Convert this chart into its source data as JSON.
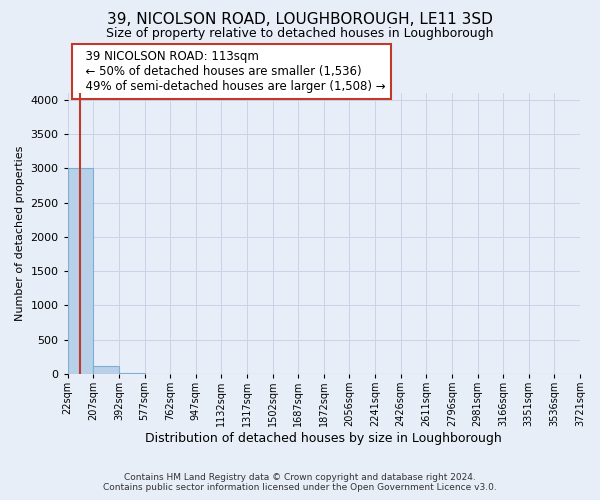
{
  "title": "39, NICOLSON ROAD, LOUGHBOROUGH, LE11 3SD",
  "subtitle": "Size of property relative to detached houses in Loughborough",
  "xlabel": "Distribution of detached houses by size in Loughborough",
  "ylabel": "Number of detached properties",
  "footer_line1": "Contains HM Land Registry data © Crown copyright and database right 2024.",
  "footer_line2": "Contains public sector information licensed under the Open Government Licence v3.0.",
  "annotation_title": "39 NICOLSON ROAD: 113sqm",
  "annotation_line1": "← 50% of detached houses are smaller (1,536)",
  "annotation_line2": "49% of semi-detached houses are larger (1,508) →",
  "property_size": 113,
  "bin_edges": [
    22,
    207,
    392,
    577,
    762,
    947,
    1132,
    1317,
    1502,
    1687,
    1872,
    2056,
    2241,
    2426,
    2611,
    2796,
    2981,
    3166,
    3351,
    3536,
    3721
  ],
  "bar_heights": [
    3000,
    120,
    8,
    3,
    2,
    2,
    1,
    1,
    1,
    1,
    1,
    0,
    0,
    0,
    0,
    0,
    0,
    0,
    0,
    0
  ],
  "bar_color": "#b8d0e8",
  "bar_edge_color": "#7bafd4",
  "marker_color": "#c0392b",
  "annotation_box_edge_color": "#c0392b",
  "annotation_box_face_color": "#ffffff",
  "grid_color": "#c8d4e8",
  "bg_color": "#e8eef8",
  "ylim": [
    0,
    4100
  ],
  "yticks": [
    0,
    500,
    1000,
    1500,
    2000,
    2500,
    3000,
    3500,
    4000
  ],
  "title_fontsize": 11,
  "subtitle_fontsize": 9,
  "annotation_fontsize": 8.5,
  "ylabel_fontsize": 8,
  "xlabel_fontsize": 9,
  "tick_fontsize": 8,
  "xtick_fontsize": 7
}
